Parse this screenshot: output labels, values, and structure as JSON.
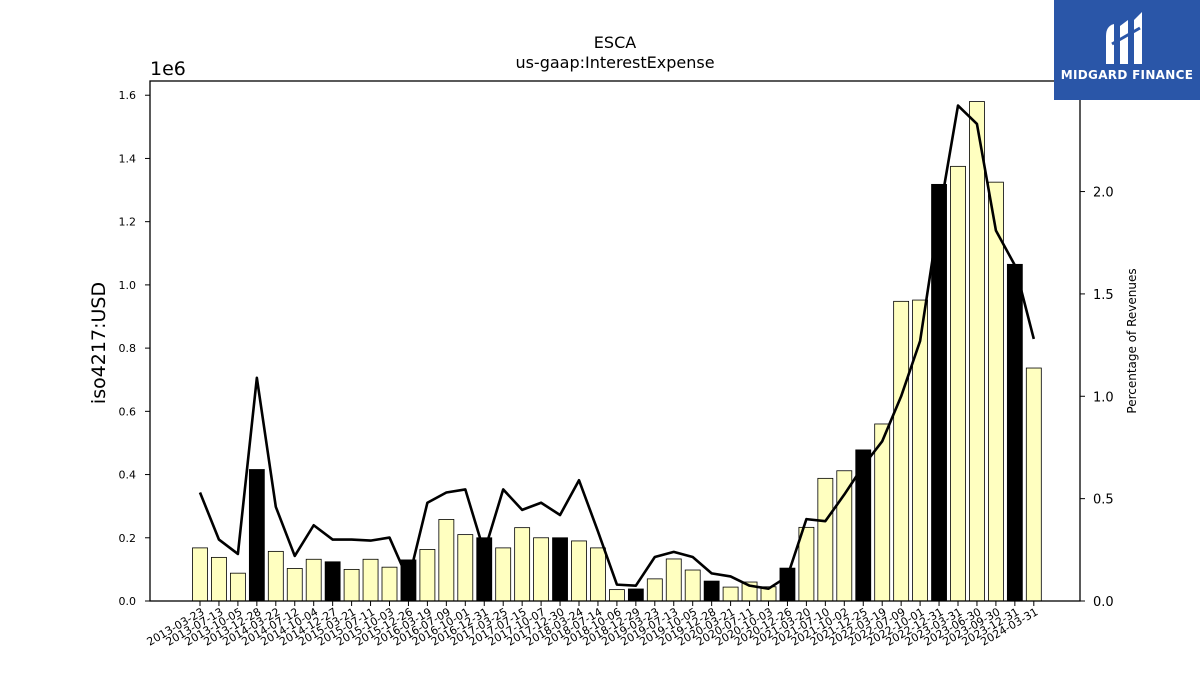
{
  "chart_data": {
    "type": "bar",
    "title": "ESCA",
    "subtitle": "us-gaap:InterestExpense",
    "ylabel": "iso4217:USD",
    "y2label": "Percentage of Revenues",
    "y_scale_label": "1e6",
    "ylim": [
      0,
      1.645
    ],
    "y2lim": [
      0,
      2.54
    ],
    "yticks": [
      "0.0",
      "0.2",
      "0.4",
      "0.6",
      "0.8",
      "1.0",
      "1.2",
      "1.4",
      "1.6"
    ],
    "y2ticks": [
      "0.0",
      "0.5",
      "1.0",
      "1.5",
      "2.0"
    ],
    "categories": [
      "2013-03-23",
      "2013-07-13",
      "2013-10-05",
      "2013-12-28",
      "2014-03-22",
      "2014-07-12",
      "2014-10-04",
      "2014-12-27",
      "2015-03-21",
      "2015-07-11",
      "2015-10-03",
      "2015-12-26",
      "2016-03-19",
      "2016-07-09",
      "2016-10-01",
      "2016-12-31",
      "2017-03-25",
      "2017-07-15",
      "2017-10-07",
      "2017-12-30",
      "2018-03-24",
      "2018-07-14",
      "2018-10-06",
      "2018-12-29",
      "2019-03-23",
      "2019-07-13",
      "2019-10-05",
      "2019-12-28",
      "2020-03-21",
      "2020-07-11",
      "2020-10-03",
      "2020-12-26",
      "2021-03-20",
      "2021-07-10",
      "2021-10-02",
      "2021-12-25",
      "2022-03-19",
      "2022-07-09",
      "2022-10-01",
      "2022-12-31",
      "2023-03-31",
      "2023-06-30",
      "2023-09-30",
      "2023-12-31",
      "2024-03-31"
    ],
    "series": [
      {
        "values": [
          0.168,
          0.138,
          0.088,
          0.416,
          0.157,
          0.103,
          0.132,
          0.124,
          0.1,
          0.132,
          0.107,
          0.13,
          0.163,
          0.258,
          0.21,
          0.2,
          0.168,
          0.232,
          0.2,
          0.2,
          0.19,
          0.168,
          0.036,
          0.038,
          0.07,
          0.133,
          0.098,
          0.063,
          0.044,
          0.06,
          0.045,
          0.104,
          0.233,
          0.388,
          0.412,
          0.478,
          0.56,
          0.948,
          0.952,
          1.318,
          1.375,
          1.58,
          1.325,
          1.065,
          0.737
        ],
        "highlight": [
          false,
          false,
          false,
          true,
          false,
          false,
          false,
          true,
          false,
          false,
          false,
          true,
          false,
          false,
          false,
          true,
          false,
          false,
          false,
          true,
          false,
          false,
          false,
          true,
          false,
          false,
          false,
          true,
          false,
          false,
          false,
          true,
          false,
          false,
          false,
          true,
          false,
          false,
          false,
          true,
          false,
          false,
          false,
          true,
          false
        ],
        "bar_color": "#ffffc0",
        "highlight_color": "#000000"
      },
      {
        "type": "line",
        "axis": "right",
        "color": "#000000",
        "values": [
          0.53,
          0.3,
          0.23,
          1.09,
          0.46,
          0.22,
          0.37,
          0.3,
          0.3,
          0.295,
          0.31,
          0.1,
          0.48,
          0.53,
          0.545,
          0.24,
          0.545,
          0.445,
          0.48,
          0.42,
          0.59,
          0.34,
          0.08,
          0.075,
          0.215,
          0.24,
          0.215,
          0.135,
          0.12,
          0.075,
          0.06,
          0.12,
          0.4,
          0.39,
          0.52,
          0.66,
          0.78,
          1.0,
          1.27,
          1.88,
          2.42,
          2.33,
          1.81,
          1.64,
          1.28
        ]
      }
    ]
  },
  "logo": {
    "text": "MIDGARD FINANCE",
    "color": "#2a56a8"
  }
}
